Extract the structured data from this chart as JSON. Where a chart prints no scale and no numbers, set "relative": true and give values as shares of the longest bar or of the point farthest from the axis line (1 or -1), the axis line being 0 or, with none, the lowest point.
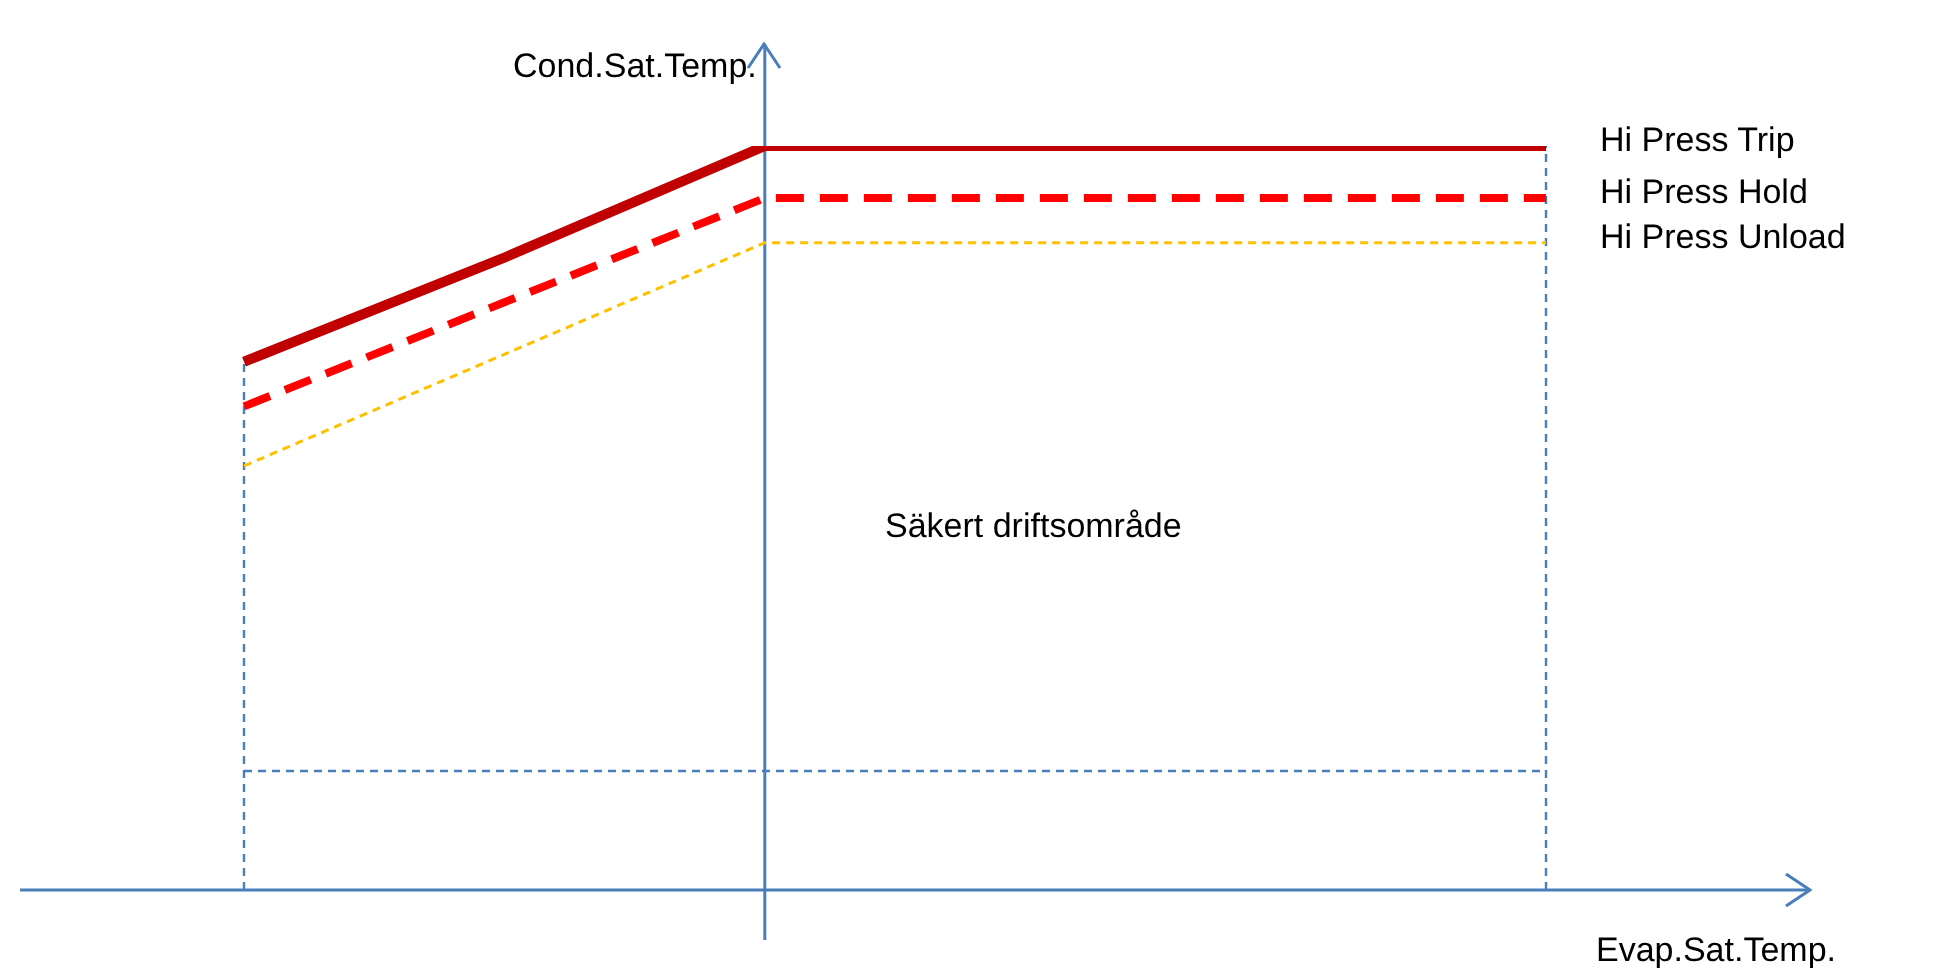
{
  "chart_data": {
    "type": "line",
    "relative": true,
    "xlabel": "Evap.Sat.Temp.",
    "ylabel": "Cond.Sat.Temp.",
    "categories": [
      null,
      null,
      null,
      null,
      null,
      null
    ],
    "series": [
      {
        "name": "Hi Press Trip",
        "color": "#c00000",
        "line_style": "solid",
        "values": [
          0.71,
          0.85,
          1,
          1,
          1,
          1
        ]
      },
      {
        "name": "Hi Press Hold",
        "color": "#ff0000",
        "line_style": "dashed",
        "values": [
          0.65,
          0.79,
          0.93,
          0.93,
          0.93,
          0.93
        ]
      },
      {
        "name": "Hi Press Unload",
        "color": "#ffc000",
        "line_style": "dotted",
        "values": [
          0.57,
          0.72,
          0.87,
          0.87,
          0.87,
          0.87
        ]
      }
    ],
    "ref_lines": [
      {
        "axis": "y",
        "value": 0.16,
        "color": "#4a7ebb",
        "line_style": "dotted"
      }
    ],
    "annotations": [
      "Säkert driftsområde"
    ],
    "marker": "none"
  }
}
